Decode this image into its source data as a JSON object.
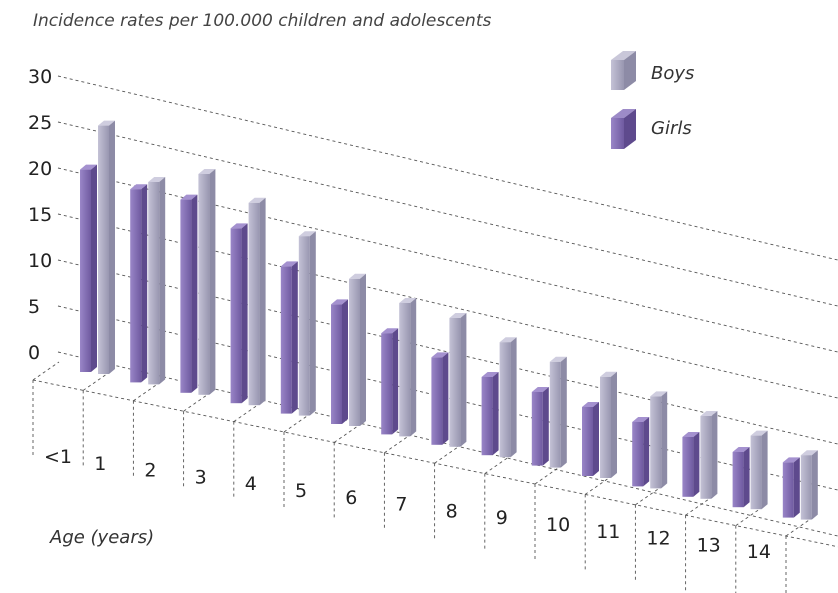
{
  "chart_data": {
    "type": "bar",
    "title": "Incidence rates per 100.000 children and adolescents",
    "xlabel": "Age (years)",
    "ylabel": "",
    "ylim": [
      0,
      30
    ],
    "yticks": [
      "0",
      "5",
      "10",
      "15",
      "20",
      "25",
      "30"
    ],
    "categories": [
      "<1",
      "1",
      "2",
      "3",
      "4",
      "5",
      "6",
      "7",
      "8",
      "9",
      "10",
      "11",
      "12",
      "13",
      "14"
    ],
    "series": [
      {
        "name": "Girls",
        "color": "#7e68ad",
        "values": [
          22,
          21,
          21,
          19,
          16,
          13,
          11,
          9.5,
          8.5,
          8,
          7.5,
          7,
          6.5,
          6,
          6
        ]
      },
      {
        "name": "Boys",
        "color": "#a8a6be",
        "values": [
          27,
          22,
          24,
          22,
          19.5,
          16,
          14.5,
          14,
          12.5,
          11.5,
          11,
          10,
          9,
          8,
          7
        ]
      }
    ],
    "legend": {
      "position": "top-right"
    },
    "grid": true
  }
}
